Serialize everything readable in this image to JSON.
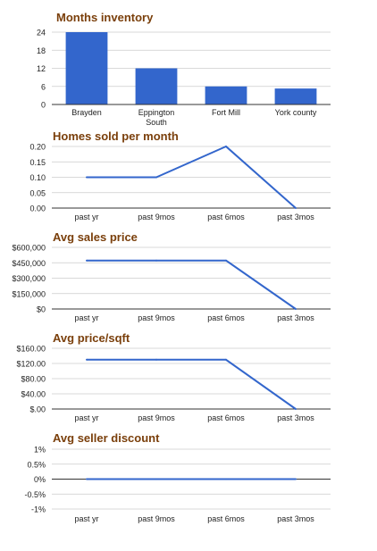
{
  "colors": {
    "bar": "#3366cc",
    "line": "#3366cc",
    "title": "#7a3f0b",
    "grid": "#cccccc",
    "baseline": "#333333",
    "tick": "#222222"
  },
  "chart_data": [
    {
      "type": "bar",
      "title": "Months inventory",
      "categories": [
        "Brayden",
        "Eppington South",
        "Fort Mill",
        "York county"
      ],
      "category_lines": [
        [
          "Brayden"
        ],
        [
          "Eppington",
          "South"
        ],
        [
          "Fort Mill"
        ],
        [
          "York county"
        ]
      ],
      "values": [
        24,
        12,
        6,
        5.3
      ],
      "ylim": [
        0,
        24
      ],
      "yticks": [
        0,
        6,
        12,
        18,
        24
      ],
      "ytick_labels": [
        "0",
        "6",
        "12",
        "18",
        "24"
      ],
      "grid": true
    },
    {
      "type": "line",
      "title": "Homes sold per month",
      "categories": [
        "past yr",
        "past 9mos",
        "past 6mos",
        "past 3mos"
      ],
      "values": [
        0.1,
        0.1,
        0.2,
        0
      ],
      "ylim": [
        0,
        0.2
      ],
      "yticks": [
        0,
        0.05,
        0.1,
        0.15,
        0.2
      ],
      "ytick_labels": [
        "0.00",
        "0.05",
        "0.10",
        "0.15",
        "0.20"
      ],
      "grid": true
    },
    {
      "type": "line",
      "title": "Avg sales price",
      "categories": [
        "past yr",
        "past 9mos",
        "past 6mos",
        "past 3mos"
      ],
      "values": [
        472000,
        472000,
        472000,
        0
      ],
      "ylim": [
        0,
        600000
      ],
      "yticks": [
        0,
        150000,
        300000,
        450000,
        600000
      ],
      "ytick_labels": [
        "$0",
        "$150,000",
        "$300,000",
        "$450,000",
        "$600,000"
      ],
      "grid": true
    },
    {
      "type": "line",
      "title": "Avg price/sqft",
      "categories": [
        "past yr",
        "past 9mos",
        "past 6mos",
        "past 3mos"
      ],
      "values": [
        130,
        130,
        130,
        0
      ],
      "ylim": [
        0,
        160
      ],
      "yticks": [
        0,
        40,
        80,
        120,
        160
      ],
      "ytick_labels": [
        "$.00",
        "$40.00",
        "$80.00",
        "$120.00",
        "$160.00"
      ],
      "grid": true
    },
    {
      "type": "line",
      "title": "Avg seller discount",
      "categories": [
        "past yr",
        "past 9mos",
        "past 6mos",
        "past 3mos"
      ],
      "values": [
        0,
        0,
        0,
        0
      ],
      "ylim": [
        -1,
        1
      ],
      "yticks": [
        -1,
        -0.5,
        0,
        0.5,
        1
      ],
      "ytick_labels": [
        "-1%",
        "-0.5%",
        "0%",
        "0.5%",
        "1%"
      ],
      "grid": true
    }
  ]
}
